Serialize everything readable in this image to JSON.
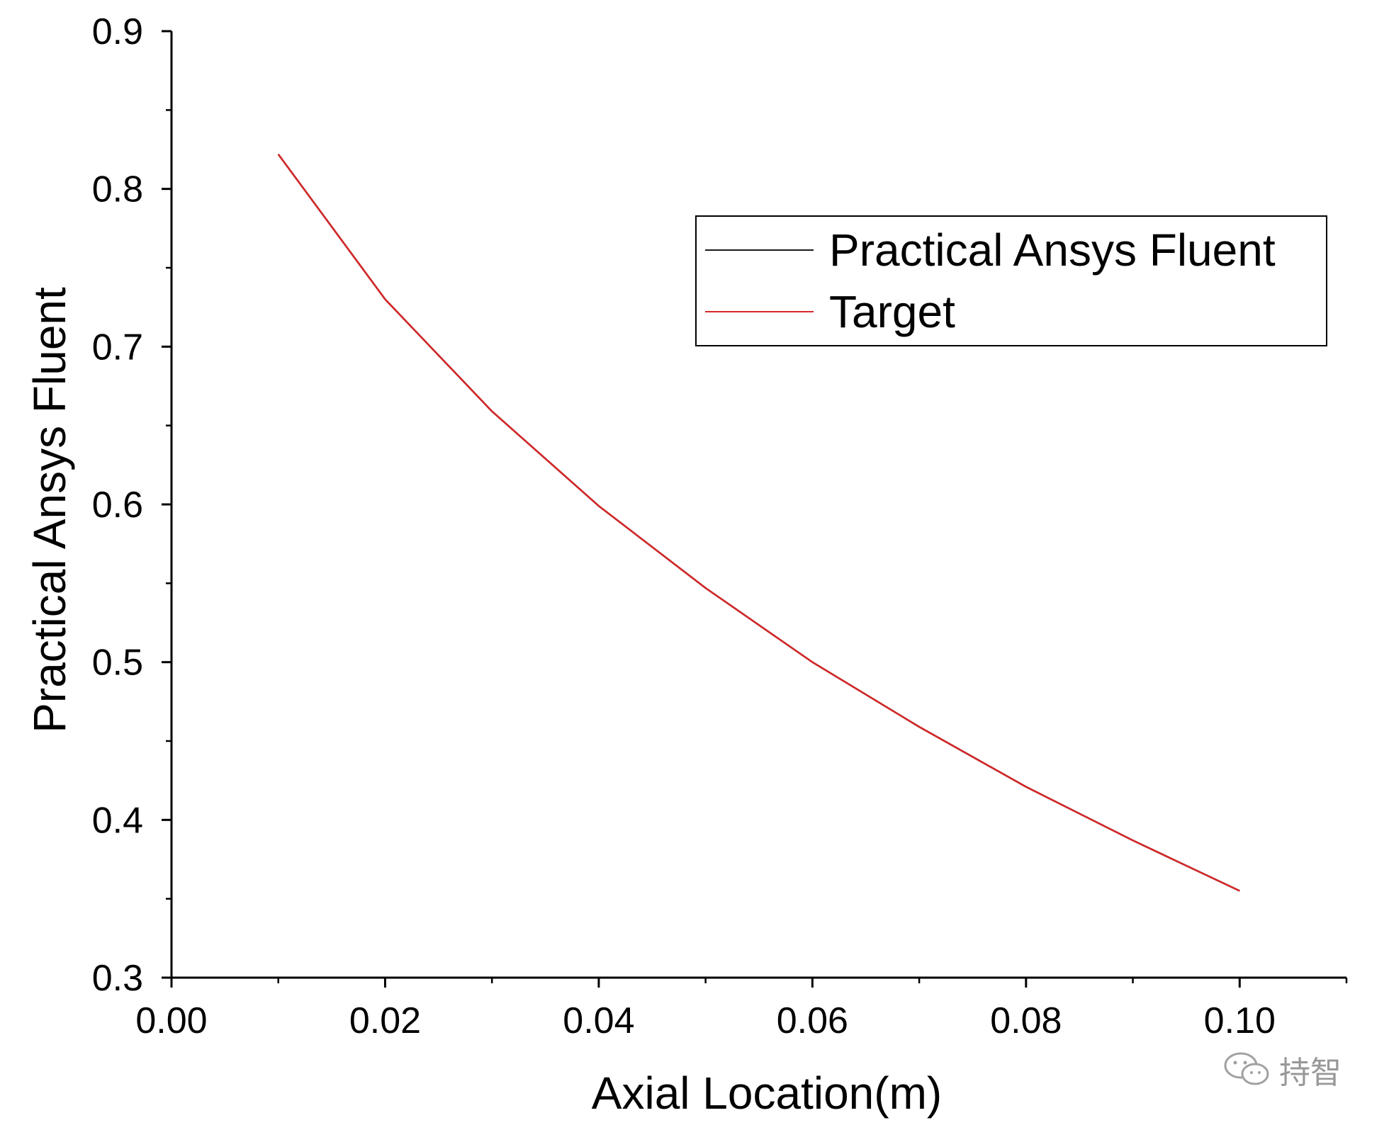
{
  "chart_data": {
    "type": "line",
    "title": "",
    "xlabel": "Axial Location(m)",
    "ylabel": "Practical Ansys Fluent",
    "xlim": [
      0.0,
      0.11
    ],
    "ylim": [
      0.3,
      0.9
    ],
    "x_ticks": [
      0.0,
      0.02,
      0.04,
      0.06,
      0.08,
      0.1
    ],
    "x_tick_labels": [
      "0.00",
      "0.02",
      "0.04",
      "0.06",
      "0.08",
      "0.10"
    ],
    "y_ticks": [
      0.3,
      0.4,
      0.5,
      0.6,
      0.7,
      0.8,
      0.9
    ],
    "y_tick_labels": [
      "0.3",
      "0.4",
      "0.5",
      "0.6",
      "0.7",
      "0.8",
      "0.9"
    ],
    "grid": false,
    "legend_position": "top-right",
    "x": [
      0.01,
      0.02,
      0.03,
      0.04,
      0.05,
      0.06,
      0.07,
      0.08,
      0.09,
      0.1
    ],
    "series": [
      {
        "name": "Practical Ansys Fluent",
        "color": "#1a1a1a",
        "values": [
          0.822,
          0.73,
          0.659,
          0.599,
          0.547,
          0.5,
          0.459,
          0.421,
          0.387,
          0.355
        ]
      },
      {
        "name": "Target",
        "color": "#d62728",
        "values": [
          0.822,
          0.73,
          0.659,
          0.599,
          0.547,
          0.5,
          0.459,
          0.421,
          0.387,
          0.355
        ]
      }
    ]
  },
  "watermark": {
    "text": "持智",
    "icon": "wechat-icon"
  }
}
